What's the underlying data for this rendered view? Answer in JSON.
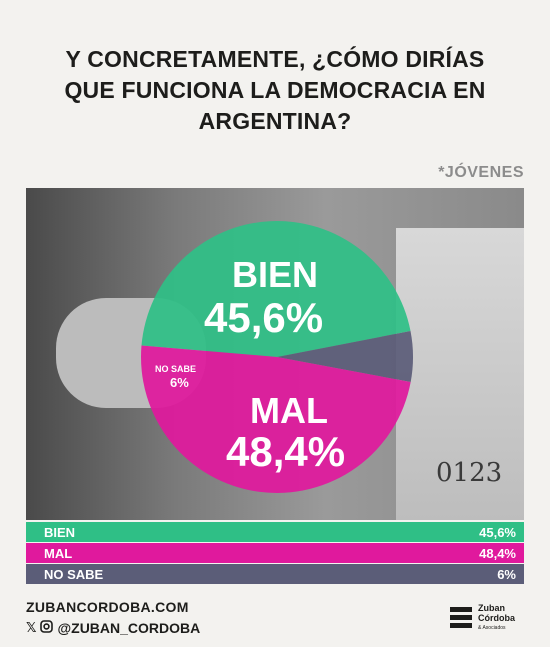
{
  "title_lines": [
    "Y CONCRETAMENTE, ¿CÓMO DIRÍAS",
    "QUE FUNCIONA LA DEMOCRACIA EN",
    "ARGENTINA?"
  ],
  "subtitle": "*JÓVENES",
  "chart_data": {
    "type": "pie",
    "slices": [
      {
        "label": "BIEN",
        "value": 45.6,
        "display": "45,6%",
        "color": "#2fbf86"
      },
      {
        "label": "MAL",
        "value": 48.4,
        "display": "48,4%",
        "color": "#e0199d"
      },
      {
        "label": "NO SABE",
        "value": 6,
        "display": "6%",
        "color": "#5b5d78"
      }
    ]
  },
  "table": [
    {
      "label": "BIEN",
      "value": "45,6%",
      "color": "#2fbf86"
    },
    {
      "label": "MAL",
      "value": "48,4%",
      "color": "#e0199d"
    },
    {
      "label": "NO SABE",
      "value": "6%",
      "color": "#5b5d78"
    }
  ],
  "footer": {
    "site": "ZUBANCORDOBA.COM",
    "handle": "@ZUBAN_CORDOBA",
    "icons": [
      "x-icon",
      "instagram-icon"
    ],
    "logo_lines": [
      "Zuban",
      "Córdoba",
      "& Asociados"
    ]
  }
}
